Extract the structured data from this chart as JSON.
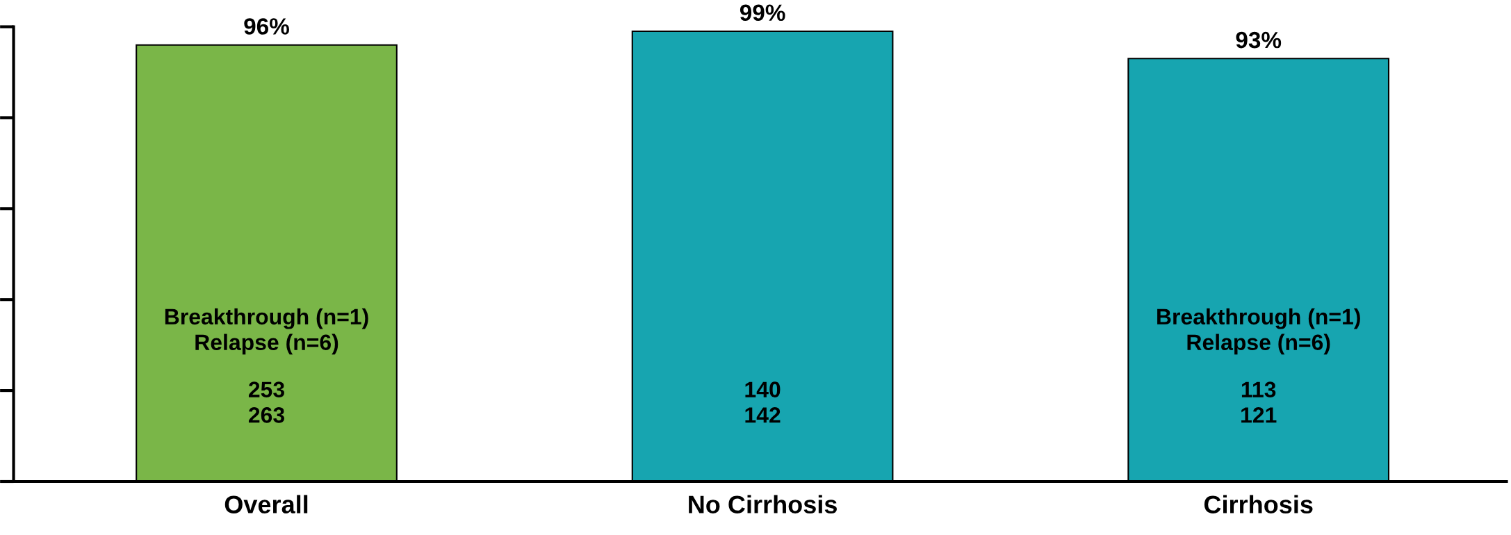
{
  "chart_data": {
    "type": "bar",
    "categories": [
      "Overall",
      "No Cirrhosis",
      "Cirrhosis"
    ],
    "values": [
      96,
      99,
      93
    ],
    "colors": [
      "#7ab648",
      "#17a5b0",
      "#17a5b0"
    ],
    "value_labels": [
      "96%",
      "99%",
      "93%"
    ],
    "ylim": [
      0,
      100
    ],
    "tick_labels": "x",
    "grid": false,
    "annotations": [
      "Breakthrough (n=1)\nRelapse (n=6)",
      "253\n263",
      "140\n142",
      "Breakthrough (n=1)\nRelapse (n=6)",
      "113\n121"
    ]
  }
}
